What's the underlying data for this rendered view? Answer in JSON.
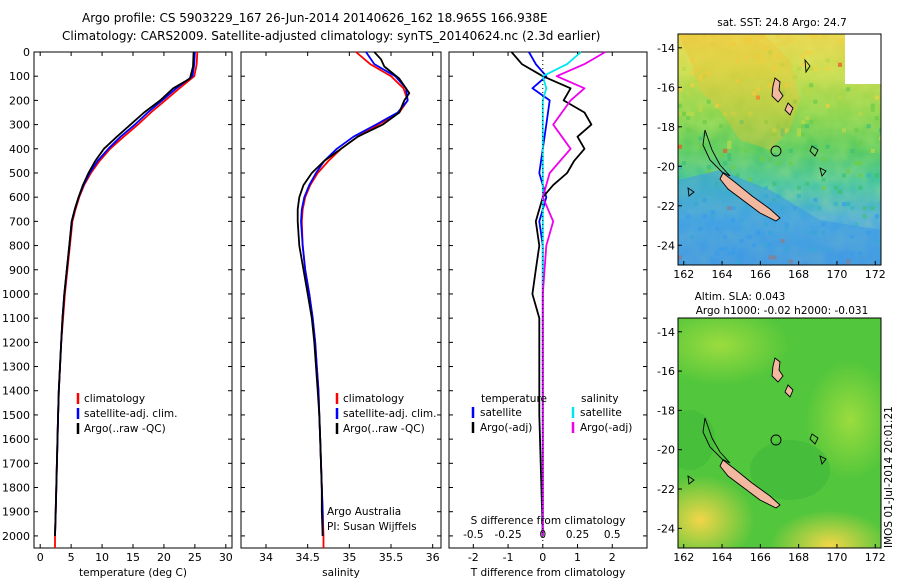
{
  "header": {
    "line1": "Argo profile: CS 5903229_167 26-Jun-2014 20140626_162 18.965S 166.938E",
    "line2": "Climatology: CARS2009. Satellite-adjusted climatology: synTS_20140624.nc (2.3d earlier)"
  },
  "credits": {
    "org": "Argo Australia",
    "pi": "PI: Susan Wijffels"
  },
  "watermark": "IMOS 01-Jul-2014 20:01:21",
  "colors": {
    "climatology": "#ff0000",
    "satellite": "#0000ff",
    "argo": "#000000",
    "sat_salinity": "#00e5ee",
    "argo_salinity": "#ee00ee"
  },
  "chart_data": [
    {
      "type": "line",
      "xlabel": "temperature (deg C)",
      "xlim": [
        -1,
        31
      ],
      "xticks": [
        0,
        5,
        10,
        15,
        20,
        25,
        30
      ],
      "ylim": [
        2050,
        0
      ],
      "yticks": [
        0,
        100,
        200,
        300,
        400,
        500,
        600,
        700,
        800,
        900,
        1000,
        1100,
        1200,
        1300,
        1400,
        1500,
        1600,
        1700,
        1800,
        1900,
        2000
      ],
      "legend": [
        "climatology",
        "satellite-adj. clim.",
        "Argo(..raw -QC)"
      ],
      "series": [
        {
          "name": "climatology",
          "color": "#ff0000",
          "points": [
            [
              25.4,
              0
            ],
            [
              25.3,
              50
            ],
            [
              24.9,
              100
            ],
            [
              22.5,
              150
            ],
            [
              20.2,
              200
            ],
            [
              17.9,
              250
            ],
            [
              15.8,
              300
            ],
            [
              13.5,
              350
            ],
            [
              11.3,
              400
            ],
            [
              9.6,
              450
            ],
            [
              8.2,
              500
            ],
            [
              7.1,
              550
            ],
            [
              6.3,
              600
            ],
            [
              5.7,
              650
            ],
            [
              5.2,
              700
            ],
            [
              4.8,
              800
            ],
            [
              4.4,
              900
            ],
            [
              4.0,
              1000
            ],
            [
              3.7,
              1100
            ],
            [
              3.4,
              1200
            ],
            [
              3.2,
              1300
            ],
            [
              3.0,
              1400
            ],
            [
              2.9,
              1500
            ],
            [
              2.8,
              1600
            ],
            [
              2.7,
              1700
            ],
            [
              2.6,
              1800
            ],
            [
              2.5,
              1900
            ],
            [
              2.4,
              2000
            ],
            [
              2.4,
              2050
            ]
          ]
        },
        {
          "name": "satellite-adj. clim.",
          "color": "#0000ff",
          "points": [
            [
              25.0,
              0
            ],
            [
              24.9,
              50
            ],
            [
              24.6,
              100
            ],
            [
              22.0,
              150
            ],
            [
              19.7,
              200
            ],
            [
              17.4,
              250
            ],
            [
              15.3,
              300
            ],
            [
              13.0,
              350
            ],
            [
              11.0,
              400
            ],
            [
              9.3,
              450
            ],
            [
              8.0,
              500
            ],
            [
              7.0,
              550
            ],
            [
              6.2,
              600
            ],
            [
              5.6,
              650
            ],
            [
              5.1,
              700
            ],
            [
              4.7,
              800
            ],
            [
              4.3,
              900
            ],
            [
              3.9,
              1000
            ],
            [
              3.6,
              1100
            ],
            [
              3.4,
              1200
            ],
            [
              3.2,
              1300
            ],
            [
              3.0,
              1400
            ],
            [
              2.9,
              1500
            ],
            [
              2.8,
              1600
            ],
            [
              2.7,
              1700
            ],
            [
              2.6,
              1800
            ],
            [
              2.5,
              1900
            ],
            [
              2.4,
              2000
            ]
          ]
        },
        {
          "name": "Argo(..raw -QC)",
          "color": "#000000",
          "points": [
            [
              24.8,
              0
            ],
            [
              24.7,
              60
            ],
            [
              24.2,
              110
            ],
            [
              21.5,
              150
            ],
            [
              19.4,
              200
            ],
            [
              16.8,
              250
            ],
            [
              14.6,
              300
            ],
            [
              12.4,
              350
            ],
            [
              10.3,
              400
            ],
            [
              8.9,
              450
            ],
            [
              7.8,
              500
            ],
            [
              6.9,
              550
            ],
            [
              6.2,
              600
            ],
            [
              5.6,
              650
            ],
            [
              5.1,
              700
            ],
            [
              4.7,
              800
            ],
            [
              4.3,
              900
            ],
            [
              3.9,
              1000
            ],
            [
              3.6,
              1100
            ],
            [
              3.4,
              1200
            ],
            [
              3.2,
              1300
            ],
            [
              3.0,
              1400
            ],
            [
              2.9,
              1500
            ],
            [
              2.8,
              1600
            ],
            [
              2.7,
              1700
            ],
            [
              2.6,
              1800
            ],
            [
              2.5,
              1900
            ],
            [
              2.4,
              2000
            ]
          ]
        }
      ]
    },
    {
      "type": "line",
      "xlabel": "salinity",
      "xlim": [
        33.7,
        36.1
      ],
      "xticks": [
        34,
        34.5,
        35,
        35.5,
        36
      ],
      "ylim": [
        2050,
        0
      ],
      "legend": [
        "climatology",
        "satellite-adj. clim.",
        "Argo(..raw -QC)"
      ],
      "series": [
        {
          "name": "climatology",
          "color": "#ff0000",
          "points": [
            [
              35.08,
              0
            ],
            [
              35.25,
              50
            ],
            [
              35.5,
              100
            ],
            [
              35.65,
              150
            ],
            [
              35.7,
              200
            ],
            [
              35.6,
              250
            ],
            [
              35.35,
              300
            ],
            [
              35.1,
              350
            ],
            [
              34.9,
              400
            ],
            [
              34.75,
              450
            ],
            [
              34.62,
              500
            ],
            [
              34.53,
              550
            ],
            [
              34.47,
              600
            ],
            [
              34.44,
              650
            ],
            [
              34.43,
              700
            ],
            [
              34.44,
              800
            ],
            [
              34.47,
              900
            ],
            [
              34.52,
              1000
            ],
            [
              34.56,
              1100
            ],
            [
              34.59,
              1200
            ],
            [
              34.61,
              1300
            ],
            [
              34.63,
              1400
            ],
            [
              34.64,
              1500
            ],
            [
              34.65,
              1600
            ],
            [
              34.66,
              1700
            ],
            [
              34.67,
              1800
            ],
            [
              34.68,
              1900
            ],
            [
              34.69,
              2000
            ],
            [
              34.69,
              2050
            ]
          ]
        },
        {
          "name": "satellite-adj. clim.",
          "color": "#0000ff",
          "points": [
            [
              35.2,
              0
            ],
            [
              35.3,
              50
            ],
            [
              35.55,
              100
            ],
            [
              35.68,
              150
            ],
            [
              35.7,
              200
            ],
            [
              35.58,
              250
            ],
            [
              35.32,
              300
            ],
            [
              35.05,
              350
            ],
            [
              34.85,
              400
            ],
            [
              34.7,
              450
            ],
            [
              34.6,
              500
            ],
            [
              34.52,
              550
            ],
            [
              34.46,
              600
            ],
            [
              34.43,
              650
            ],
            [
              34.42,
              700
            ],
            [
              34.44,
              800
            ],
            [
              34.47,
              900
            ],
            [
              34.52,
              1000
            ],
            [
              34.56,
              1100
            ],
            [
              34.59,
              1200
            ],
            [
              34.61,
              1300
            ],
            [
              34.63,
              1400
            ],
            [
              34.64,
              1500
            ],
            [
              34.65,
              1600
            ],
            [
              34.66,
              1700
            ],
            [
              34.67,
              1800
            ],
            [
              34.68,
              1900
            ],
            [
              34.68,
              2000
            ]
          ]
        },
        {
          "name": "Argo(..raw -QC)",
          "color": "#000000",
          "points": [
            [
              35.3,
              0
            ],
            [
              35.38,
              30
            ],
            [
              35.42,
              60
            ],
            [
              35.6,
              110
            ],
            [
              35.72,
              170
            ],
            [
              35.66,
              200
            ],
            [
              35.6,
              250
            ],
            [
              35.4,
              300
            ],
            [
              35.1,
              350
            ],
            [
              34.9,
              400
            ],
            [
              34.7,
              450
            ],
            [
              34.55,
              500
            ],
            [
              34.45,
              550
            ],
            [
              34.4,
              600
            ],
            [
              34.38,
              650
            ],
            [
              34.38,
              700
            ],
            [
              34.4,
              800
            ],
            [
              34.45,
              900
            ],
            [
              34.5,
              1000
            ],
            [
              34.55,
              1100
            ],
            [
              34.58,
              1200
            ],
            [
              34.6,
              1300
            ],
            [
              34.62,
              1400
            ],
            [
              34.64,
              1500
            ],
            [
              34.65,
              1600
            ],
            [
              34.66,
              1700
            ],
            [
              34.67,
              1800
            ],
            [
              34.67,
              1900
            ],
            [
              34.68,
              2000
            ]
          ]
        }
      ]
    },
    {
      "type": "line",
      "xlabel": "T difference from climatology",
      "xlabel2": "S difference from climatology",
      "xlim": [
        -2.7,
        3.0
      ],
      "xticks": [
        -2,
        -1,
        0,
        1,
        2
      ],
      "xticks2_values": [
        -0.5,
        -0.25,
        0,
        0.25,
        0.5
      ],
      "xticks2_labels": [
        "-0.5",
        "-0.25",
        "0",
        "0.25",
        "0.5"
      ],
      "ylim": [
        2050,
        0
      ],
      "legend_groups": [
        "temperature",
        "salinity"
      ],
      "legend": [
        "satellite",
        "Argo(-adj)",
        "satellite",
        "Argo(-adj)"
      ],
      "series": [
        {
          "name": "satellite",
          "color": "#0000ff",
          "points": [
            [
              -0.4,
              0
            ],
            [
              -0.2,
              50
            ],
            [
              0.1,
              100
            ],
            [
              -0.3,
              150
            ],
            [
              0.2,
              200
            ],
            [
              0.1,
              300
            ],
            [
              0.0,
              400
            ],
            [
              -0.1,
              500
            ],
            [
              0.1,
              600
            ],
            [
              -0.1,
              700
            ],
            [
              0.0,
              800
            ],
            [
              0.0,
              1000
            ],
            [
              0.0,
              1500
            ],
            [
              0.0,
              2000
            ]
          ]
        },
        {
          "name": "Argo(-adj)",
          "color": "#000000",
          "points": [
            [
              -0.9,
              0
            ],
            [
              -0.6,
              50
            ],
            [
              0.0,
              100
            ],
            [
              0.8,
              150
            ],
            [
              0.6,
              200
            ],
            [
              1.2,
              250
            ],
            [
              1.4,
              300
            ],
            [
              1.0,
              350
            ],
            [
              1.2,
              400
            ],
            [
              0.9,
              450
            ],
            [
              0.7,
              500
            ],
            [
              0.3,
              550
            ],
            [
              0.0,
              600
            ],
            [
              -0.2,
              700
            ],
            [
              -0.1,
              800
            ],
            [
              -0.2,
              900
            ],
            [
              -0.3,
              1000
            ],
            [
              -0.1,
              1100
            ],
            [
              -0.1,
              1200
            ],
            [
              -0.1,
              1500
            ],
            [
              0.0,
              2000
            ]
          ]
        },
        {
          "name": "satellite",
          "color": "#00e5ee",
          "points": [
            [
              1.1,
              0
            ],
            [
              0.7,
              50
            ],
            [
              0.0,
              100
            ],
            [
              0.1,
              150
            ],
            [
              0.0,
              200
            ],
            [
              0.0,
              400
            ],
            [
              0.0,
              1000
            ],
            [
              0.0,
              2000
            ]
          ]
        },
        {
          "name": "Argo(-adj)",
          "color": "#ee00ee",
          "points": [
            [
              1.8,
              0
            ],
            [
              1.2,
              50
            ],
            [
              0.4,
              100
            ],
            [
              1.2,
              150
            ],
            [
              0.8,
              200
            ],
            [
              0.3,
              300
            ],
            [
              0.8,
              400
            ],
            [
              0.2,
              500
            ],
            [
              0.0,
              600
            ],
            [
              0.3,
              700
            ],
            [
              0.1,
              800
            ],
            [
              0.0,
              1000
            ],
            [
              0.0,
              1500
            ],
            [
              0.0,
              2000
            ]
          ]
        }
      ]
    },
    {
      "type": "heatmap",
      "title": "sat. SST: 24.8 Argo: 24.7",
      "xlim": [
        161.7,
        172.3
      ],
      "ylim": [
        -25,
        -13.3
      ],
      "xticks": [
        162,
        164,
        166,
        168,
        170,
        172
      ],
      "yticks": [
        -14,
        -16,
        -18,
        -20,
        -22,
        -24
      ],
      "profile_marker": [
        166.938,
        -18.965
      ]
    },
    {
      "type": "heatmap",
      "title": "Altim. SLA: 0.043",
      "subtitle": "Argo h1000: -0.02 h2000: -0.031",
      "xlim": [
        161.7,
        172.3
      ],
      "ylim": [
        -25,
        -13.3
      ],
      "xticks": [
        162,
        164,
        166,
        168,
        170,
        172
      ],
      "yticks": [
        -14,
        -16,
        -18,
        -20,
        -22,
        -24
      ],
      "profile_marker": [
        166.938,
        -18.965
      ]
    }
  ]
}
